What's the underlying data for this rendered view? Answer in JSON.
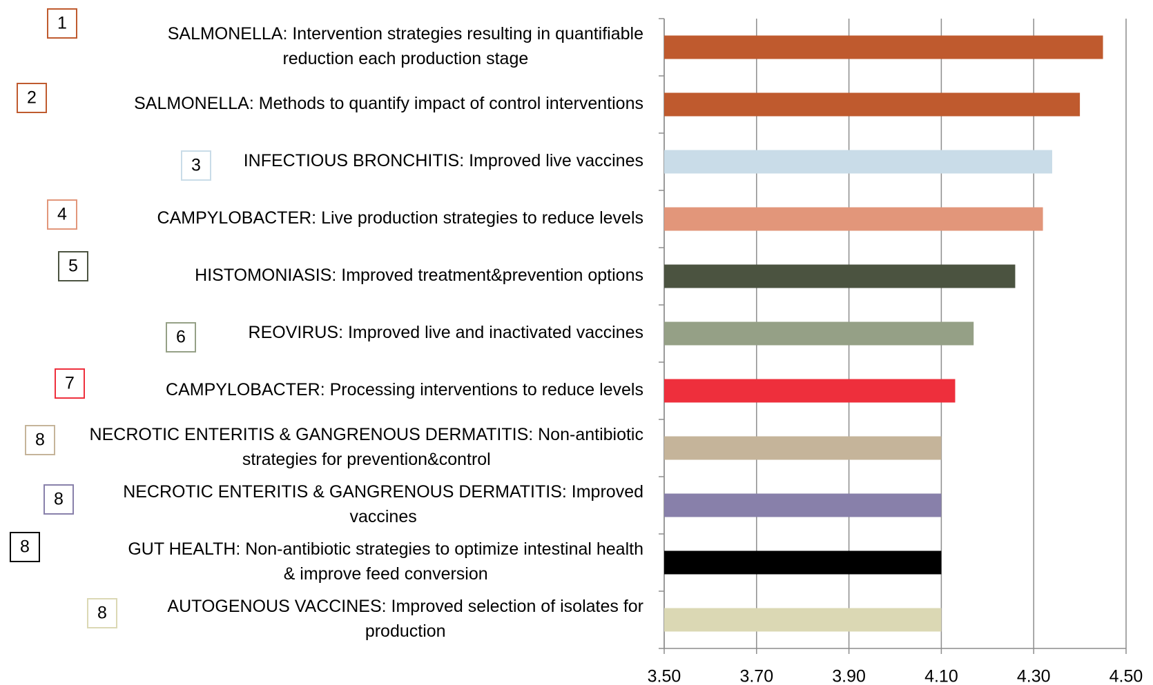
{
  "chart_data": {
    "type": "barh",
    "labels": [
      [
        "SALMONELLA: Intervention strategies resulting in quantifiable",
        "reduction each production stage"
      ],
      [
        "SALMONELLA: Methods to quantify impact of control interventions"
      ],
      [
        "INFECTIOUS BRONCHITIS: Improved live vaccines"
      ],
      [
        "CAMPYLOBACTER: Live production strategies to reduce levels"
      ],
      [
        "HISTOMONIASIS: Improved treatment&prevention options"
      ],
      [
        "REOVIRUS: Improved live and inactivated vaccines"
      ],
      [
        "CAMPYLOBACTER: Processing interventions to reduce levels"
      ],
      [
        "NECROTIC ENTERITIS & GANGRENOUS DERMATITIS: Non-antibiotic",
        "strategies for prevention&control"
      ],
      [
        "NECROTIC ENTERITIS & GANGRENOUS DERMATITIS: Improved",
        "vaccines"
      ],
      [
        "GUT HEALTH: Non-antibiotic strategies to optimize intestinal health",
        "& improve feed conversion"
      ],
      [
        "AUTOGENOUS VACCINES: Improved selection of isolates for",
        "production"
      ]
    ],
    "ranks": [
      1,
      2,
      3,
      4,
      5,
      6,
      7,
      8,
      8,
      8,
      8
    ],
    "values": [
      4.45,
      4.4,
      4.34,
      4.32,
      4.26,
      4.17,
      4.13,
      4.1,
      4.1,
      4.1,
      4.1
    ],
    "colors": [
      "#bf5a2e",
      "#bf5a2e",
      "#c9dce8",
      "#e2967a",
      "#4b5340",
      "#95a086",
      "#ee2f3c",
      "#c5b49a",
      "#8880aa",
      "#000000",
      "#dbd8b4"
    ],
    "xlim": [
      3.5,
      4.5
    ],
    "xticks": [
      {
        "value": 3.5,
        "label": "3.50"
      },
      {
        "value": 3.7,
        "label": "3.70"
      },
      {
        "value": 3.9,
        "label": "3.90"
      },
      {
        "value": 4.1,
        "label": "4.10"
      },
      {
        "value": 4.3,
        "label": "4.30"
      },
      {
        "value": 4.5,
        "label": "4.50"
      }
    ],
    "grid": true
  }
}
